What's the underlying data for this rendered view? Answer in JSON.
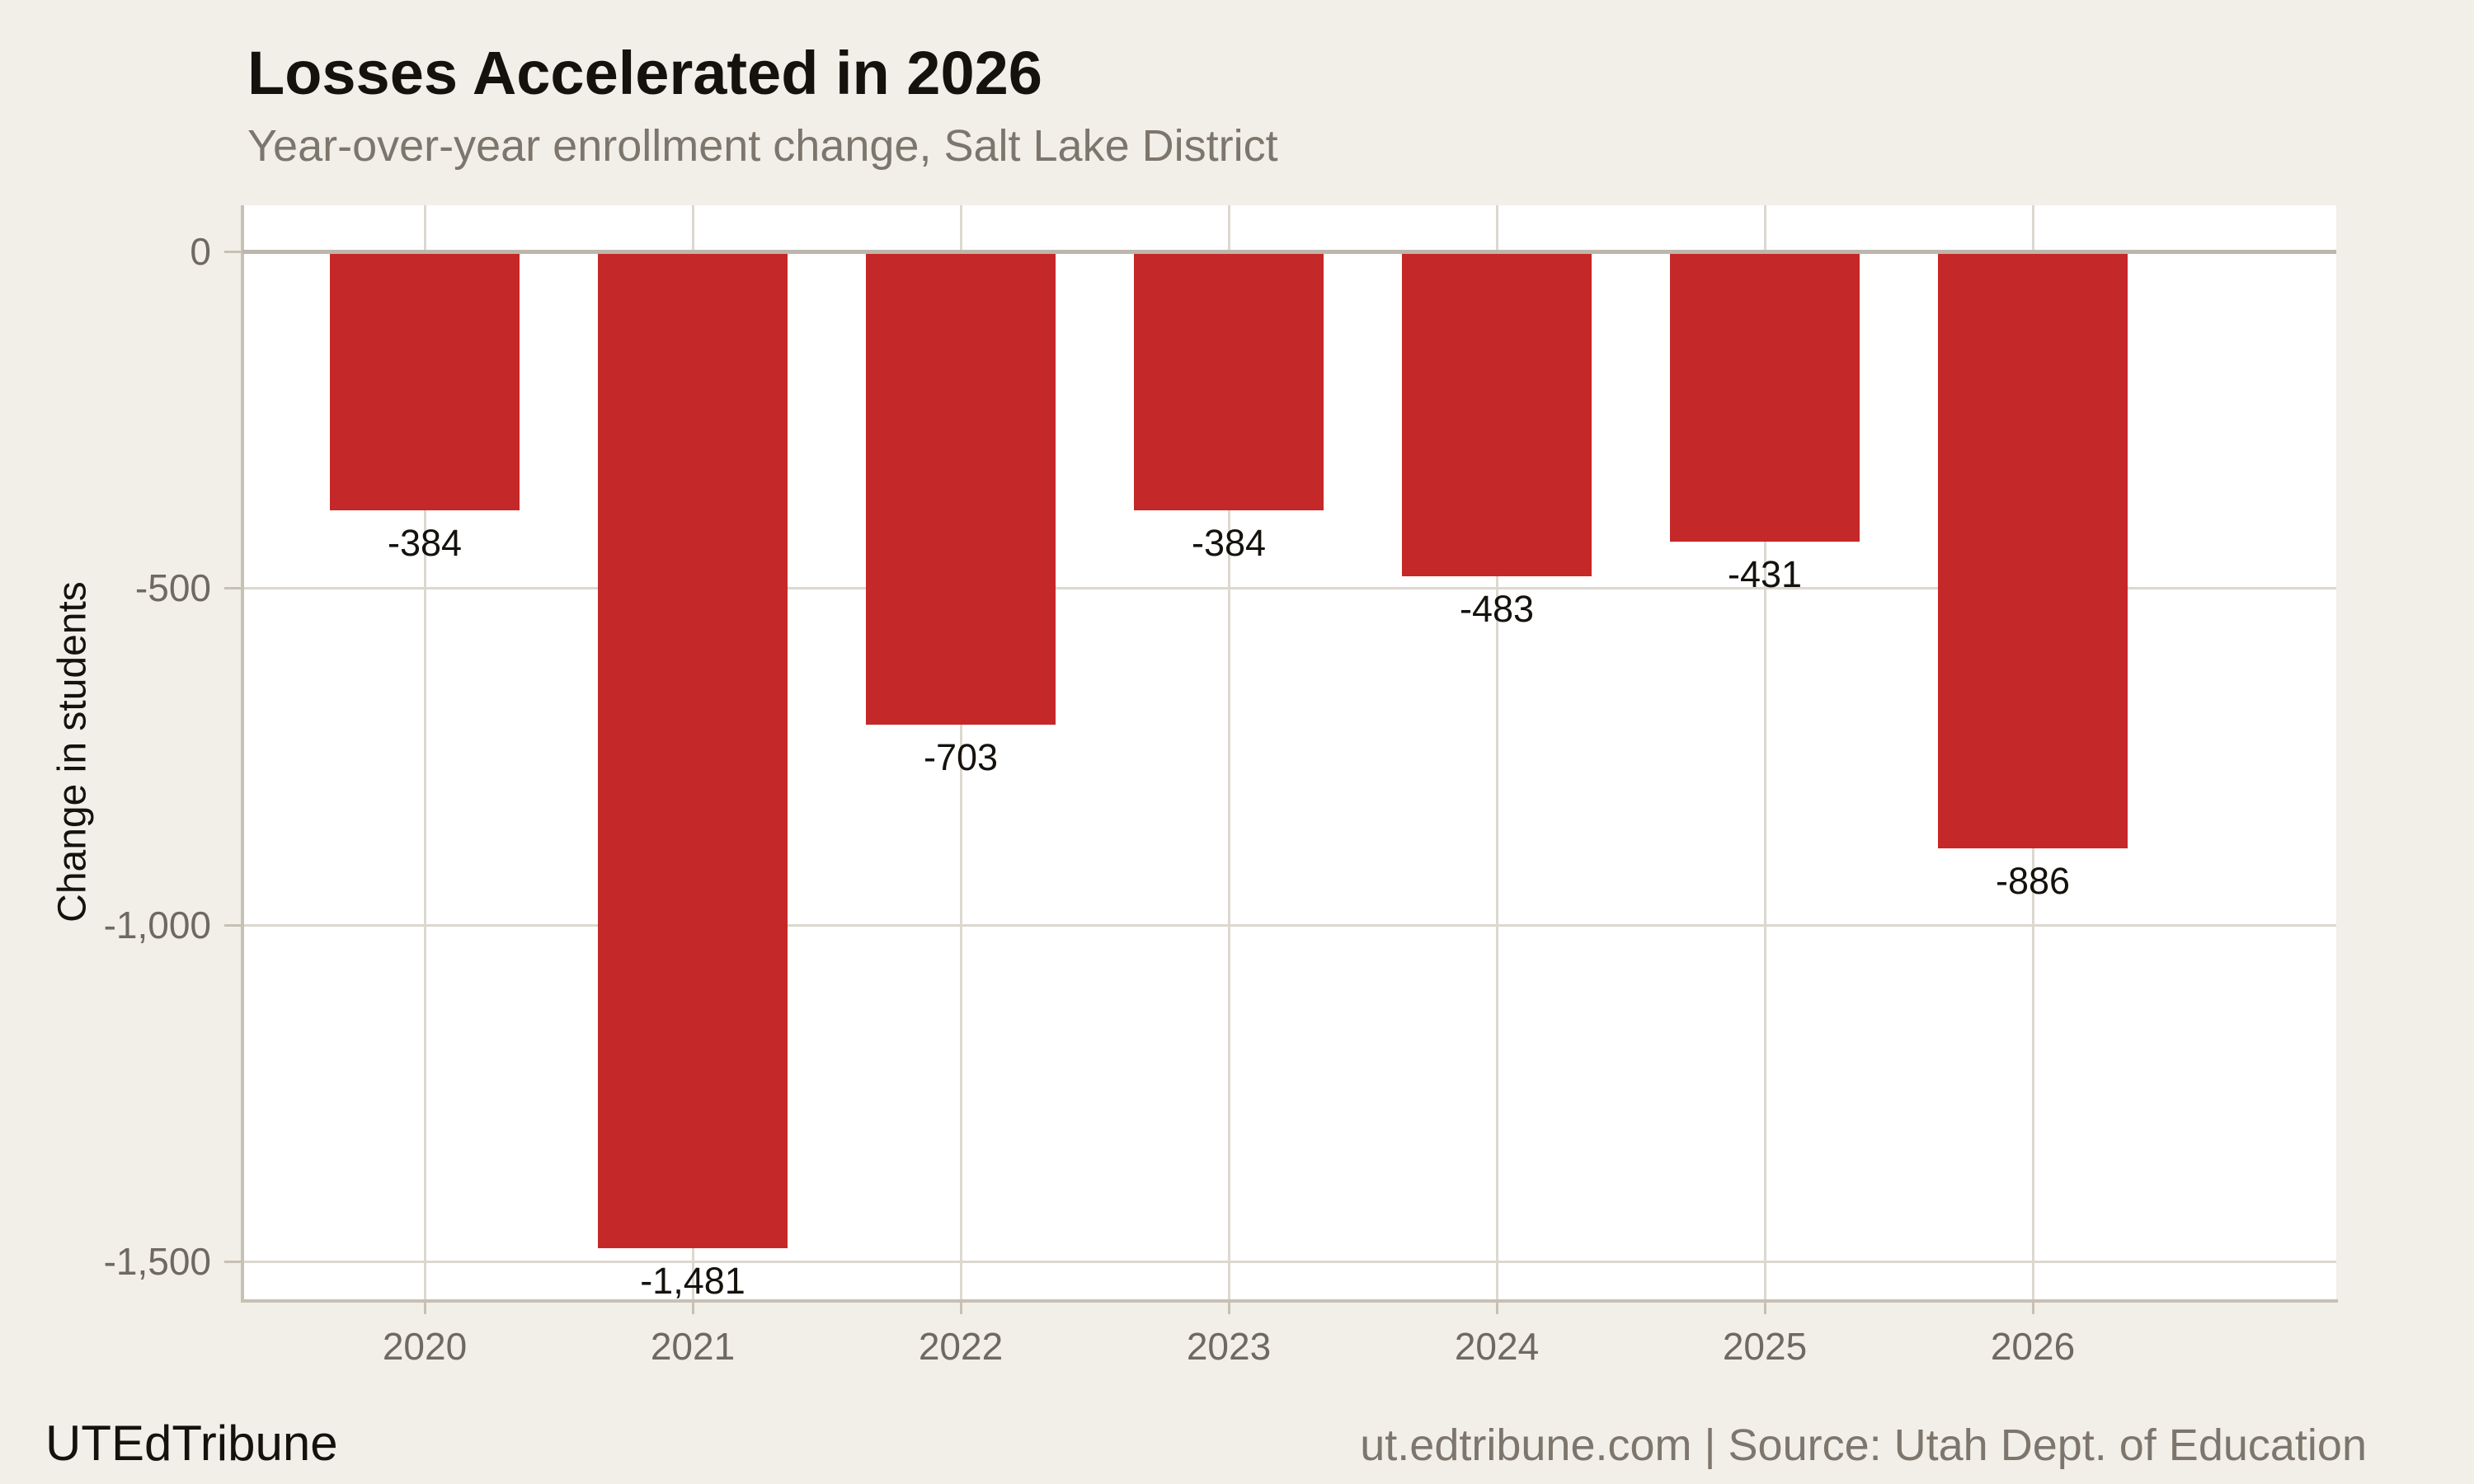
{
  "title": "Losses Accelerated in 2026",
  "subtitle": "Year-over-year enrollment change, Salt Lake District",
  "footer": {
    "left": "UTEdTribune",
    "right": "ut.edtribune.com | Source: Utah Dept. of Education"
  },
  "y_axis": {
    "label": "Change in students",
    "ticks": [
      {
        "label": "0",
        "value": 0
      },
      {
        "label": "-500",
        "value": -500
      },
      {
        "label": "-1,000",
        "value": -1000
      },
      {
        "label": "-1,500",
        "value": -1500
      }
    ]
  },
  "colors": {
    "background": "#f2efe8",
    "plot_background": "#ffffff",
    "bar": "#c52828",
    "gridline": "#dcd8cf",
    "axis": "#c6c0b5",
    "zero_line": "#bdb6aa",
    "tick_text": "#6e6961",
    "muted_text": "#7c766d",
    "dark_text": "#15120e"
  },
  "chart_data": {
    "type": "bar",
    "title": "Losses Accelerated in 2026",
    "subtitle": "Year-over-year enrollment change, Salt Lake District",
    "categories": [
      "2020",
      "2021",
      "2022",
      "2023",
      "2024",
      "2025",
      "2026"
    ],
    "values": [
      -384,
      -1481,
      -703,
      -384,
      -483,
      -431,
      -886
    ],
    "bar_labels": [
      "-384",
      "-1,481",
      "-703",
      "-384",
      "-483",
      "-431",
      "-886"
    ],
    "xlabel": "",
    "ylabel": "Change in students",
    "ylim": [
      -1556,
      69
    ],
    "grid": true,
    "legend": false,
    "bar_color": "#c52828",
    "value_label_position": "below-bar-end"
  }
}
